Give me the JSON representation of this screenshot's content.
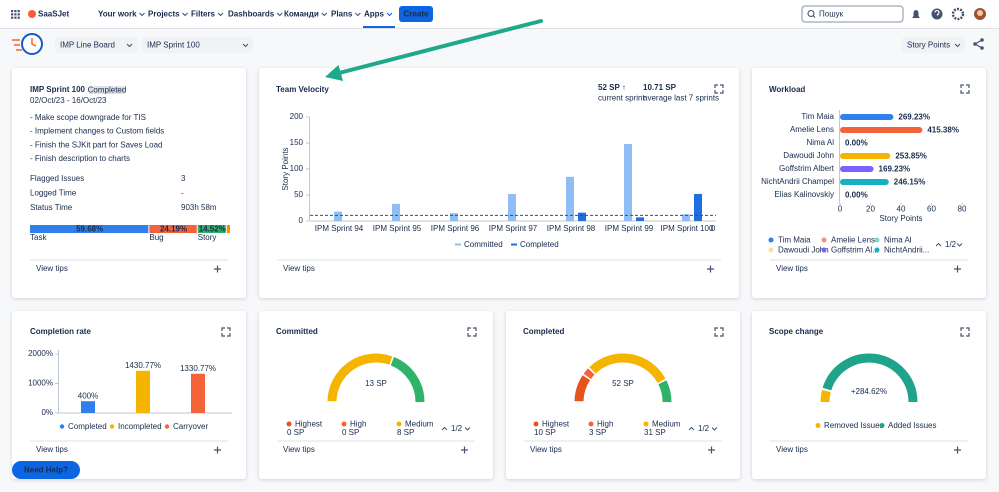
{
  "nav": {
    "logo": "SaaSJet",
    "items": [
      "Your work",
      "Projects",
      "Filters",
      "Dashboards",
      "Команди",
      "Plans",
      "Apps"
    ],
    "create": "Create",
    "search": "Пошук"
  },
  "toolbar": {
    "board": "IMP Line Board",
    "sprint": "IMP Sprint 100",
    "metric": "Story Points"
  },
  "sprint": {
    "title": "IMP Sprint 100",
    "status": "Completed",
    "dates": "02/Oct/23 - 16/Oct/23",
    "goals": [
      "- Make scope downgrade for TIS",
      "- Implement changes to Custom fields",
      "- Finish the SJKit part for Saves Load",
      "- Finish description to charts"
    ],
    "stats": [
      {
        "label": "Flagged Issues",
        "value": "3"
      },
      {
        "label": "Logged Time",
        "value": "-"
      },
      {
        "label": "Status Time",
        "value": "903h 58m"
      }
    ],
    "chart_data": {
      "type": "stacked-bar",
      "xlim": [
        0,
        100
      ],
      "rest_color": "#ff8b00",
      "series": [
        {
          "name": "Task",
          "color": "#2f80ed",
          "values": [
            59.68
          ],
          "value_labels": [
            "59.68%"
          ]
        },
        {
          "name": "Bug",
          "color": "#f4623a",
          "values": [
            24.19
          ],
          "value_labels": [
            "24.19%"
          ]
        },
        {
          "name": "Story",
          "color": "#2fb36b",
          "values": [
            14.52
          ],
          "value_labels": [
            "14.52%"
          ]
        }
      ]
    },
    "footer": "View tips"
  },
  "velocity": {
    "title": "Team Velocity",
    "current": "52 SP ↑",
    "current_caption": "current sprint",
    "average": "10.71 SP",
    "average_caption": "average last 7 sprints",
    "chart_data": {
      "type": "bar",
      "categories": [
        "IPM Sprint 94",
        "IPM Sprint 95",
        "IPM Sprint 96",
        "IPM Sprint 97",
        "IPM Sprint 98",
        "IPM Sprint 99",
        "IPM Sprint 100"
      ],
      "edge_label": "0",
      "y_label": "Story Points",
      "ylim": [
        0,
        200
      ],
      "yticks": [
        0,
        50,
        100,
        150,
        200
      ],
      "average_line": 10.71,
      "series": [
        {
          "name": "Committed",
          "color": "#90bdf5",
          "values": [
            18,
            33,
            15,
            52,
            85,
            148,
            13
          ]
        },
        {
          "name": "Completed",
          "color": "#1f6fe0",
          "values": [
            0,
            0,
            0,
            0,
            16,
            7,
            52
          ]
        }
      ]
    },
    "footer": "View tips"
  },
  "workload": {
    "title": "Workload",
    "chart_data": {
      "type": "hbar",
      "categories": [
        "Tim Maia",
        "Amelie Lens",
        "Nima Al",
        "Dawoudi John",
        "Goffstrim Albert",
        "NichtAndrii Champel",
        "Elias Kalinovskiy"
      ],
      "values": [
        35,
        54,
        0,
        33,
        22,
        32,
        0
      ],
      "value_labels": [
        "269.23%",
        "415.38%",
        "0.00%",
        "253.85%",
        "169.23%",
        "246.15%",
        "0.00%"
      ],
      "colors": [
        "#2f80ed",
        "#f4623a",
        "#7fd6c8",
        "#f5b400",
        "#7b61ff",
        "#16b0c3",
        "#8590a2"
      ],
      "xlim": [
        0,
        80
      ],
      "xticks": [
        0,
        20,
        40,
        60,
        80
      ],
      "x_label": "Story Points"
    },
    "legend": {
      "items": [
        "Tim Maia",
        "Amelie Lens",
        "Nima Al",
        "Dawoudi John",
        "Goffstrim Al...",
        "NichtAndrii..."
      ],
      "colors": [
        "#2f80ed",
        "#f5917a",
        "#7fd6c8",
        "#fbe29a",
        "#7b61ff",
        "#16b0c3"
      ],
      "page": "1/2"
    },
    "footer": "View tips"
  },
  "completion": {
    "title": "Completion rate",
    "chart_data": {
      "type": "bar",
      "categories": [
        "Completed",
        "Incompleted",
        "Carryover"
      ],
      "values": [
        400,
        1430.77,
        1330.77
      ],
      "value_labels": [
        "400%",
        "1430.77%",
        "1330.77%"
      ],
      "colors": [
        "#2f80ed",
        "#f5b400",
        "#f4623a"
      ],
      "ylim": [
        0,
        2000
      ],
      "yticks": [
        {
          "value": 0,
          "label": "0%"
        },
        {
          "value": 1000,
          "label": "1000%"
        },
        {
          "value": 2000,
          "label": "2000%"
        }
      ]
    },
    "footer": "View tips"
  },
  "committed": {
    "title": "Committed",
    "chart_data": {
      "type": "gauge",
      "total": {
        "value": 13,
        "label": "13 SP"
      },
      "rest_color": "#2fb36b",
      "segments": [
        {
          "name": "Highest",
          "color": "#e5541b",
          "value": 0,
          "value_label": "0 SP"
        },
        {
          "name": "High",
          "color": "#f4623a",
          "value": 0,
          "value_label": "0 SP"
        },
        {
          "name": "Medium",
          "color": "#f5b400",
          "value": 8,
          "value_label": "8 SP"
        }
      ]
    },
    "page": "1/2",
    "footer": "View tips"
  },
  "completed": {
    "title": "Completed",
    "chart_data": {
      "type": "gauge",
      "total": {
        "value": 52,
        "label": "52 SP"
      },
      "rest_color": "#2fb36b",
      "segments": [
        {
          "name": "Highest",
          "color": "#e5541b",
          "value": 10,
          "value_label": "10 SP"
        },
        {
          "name": "High",
          "color": "#f4623a",
          "value": 3,
          "value_label": "3 SP"
        },
        {
          "name": "Medium",
          "color": "#f5b400",
          "value": 31,
          "value_label": "31 SP"
        }
      ]
    },
    "page": "1/2",
    "footer": "View tips"
  },
  "scope": {
    "title": "Scope change",
    "center": "+284.62%",
    "legend": [
      "Removed Issues",
      "Added Issues"
    ],
    "colors": [
      "#f5b400",
      "#1fa38a"
    ],
    "footer": "View tips"
  },
  "help": "Need Help?"
}
